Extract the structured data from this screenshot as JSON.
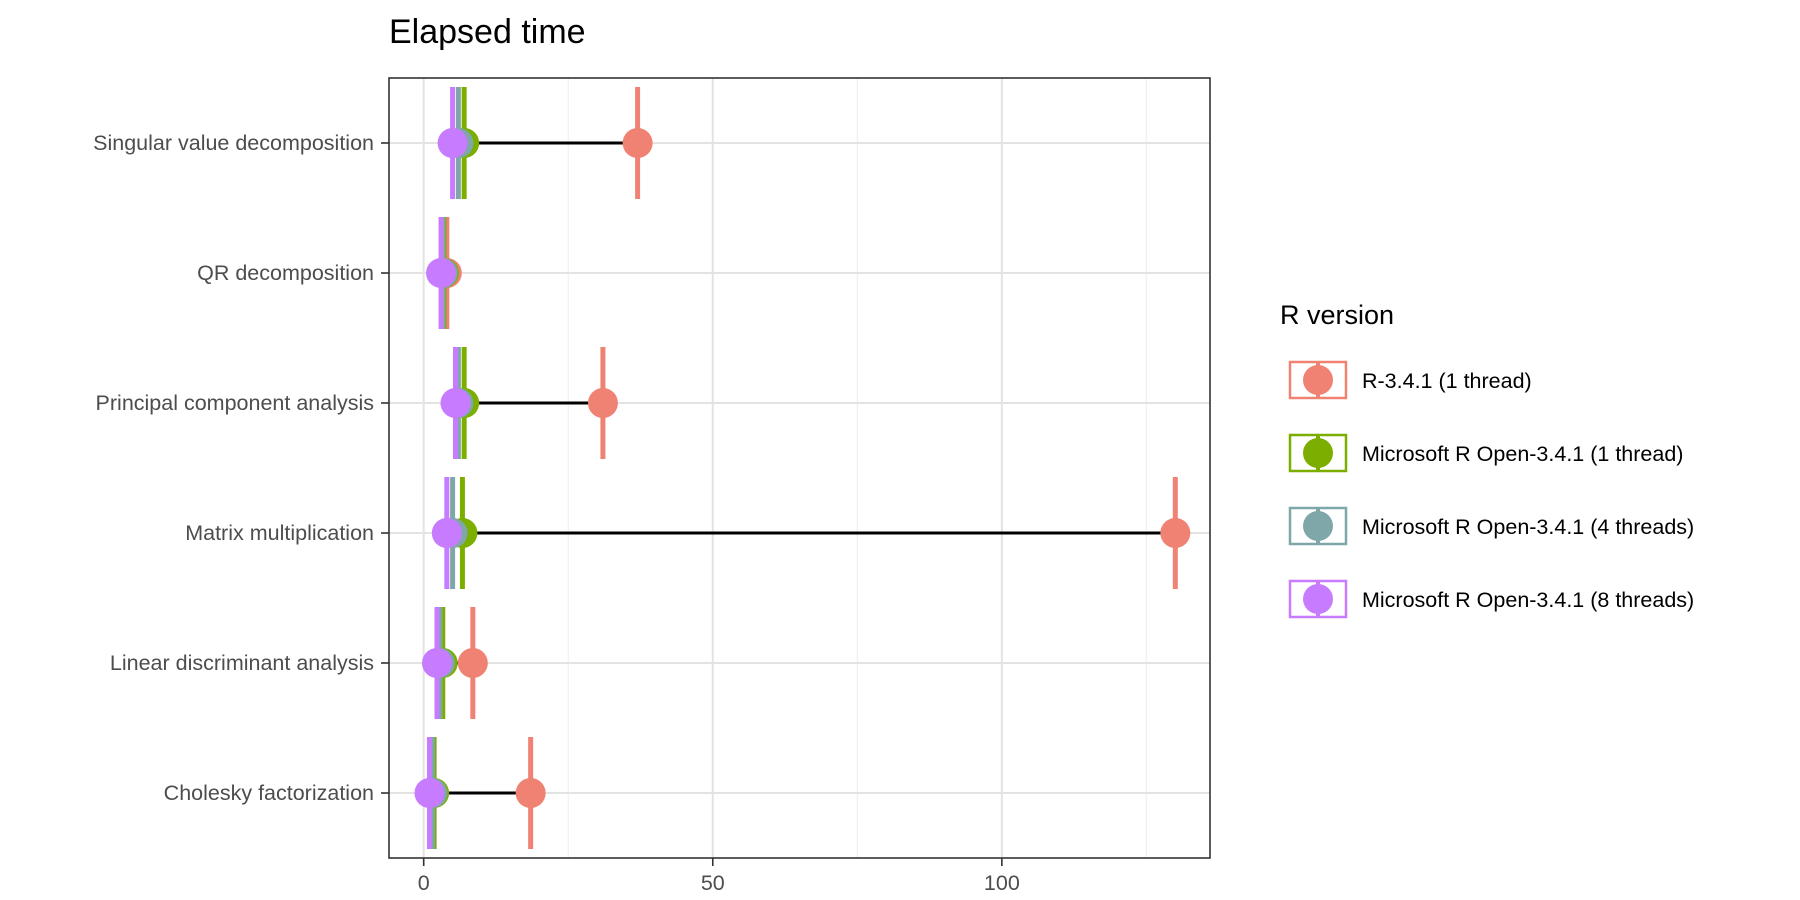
{
  "chart_data": {
    "type": "scatter",
    "title": "Elapsed time",
    "xlabel": "",
    "ylabel": "",
    "xlim": [
      -6,
      136
    ],
    "xticks": [
      0,
      50,
      100
    ],
    "x_minor_gridlines": [
      25,
      75,
      125
    ],
    "grid": true,
    "legend_title": "R version",
    "legend_position": "right",
    "categories": [
      "Singular value decomposition",
      "QR decomposition",
      "Principal component analysis",
      "Matrix multiplication",
      "Linear discriminant analysis",
      "Cholesky factorization"
    ],
    "series": [
      {
        "name": "R-3.4.1 (1 thread)",
        "color": "#f08273",
        "values": [
          37.0,
          4.0,
          31.0,
          130.0,
          8.5,
          18.5
        ]
      },
      {
        "name": "Microsoft R Open-3.4.1 (1 thread)",
        "color": "#7cae00",
        "values": [
          7.0,
          3.5,
          7.0,
          6.7,
          3.3,
          1.8
        ]
      },
      {
        "name": "Microsoft R Open-3.4.1 (4 threads)",
        "color": "#7fa7aa",
        "values": [
          6.0,
          3.3,
          6.0,
          5.0,
          2.8,
          1.5
        ]
      },
      {
        "name": "Microsoft R Open-3.4.1 (8 threads)",
        "color": "#c77cff",
        "values": [
          5.0,
          3.0,
          5.5,
          4.0,
          2.3,
          1.0
        ]
      }
    ]
  }
}
